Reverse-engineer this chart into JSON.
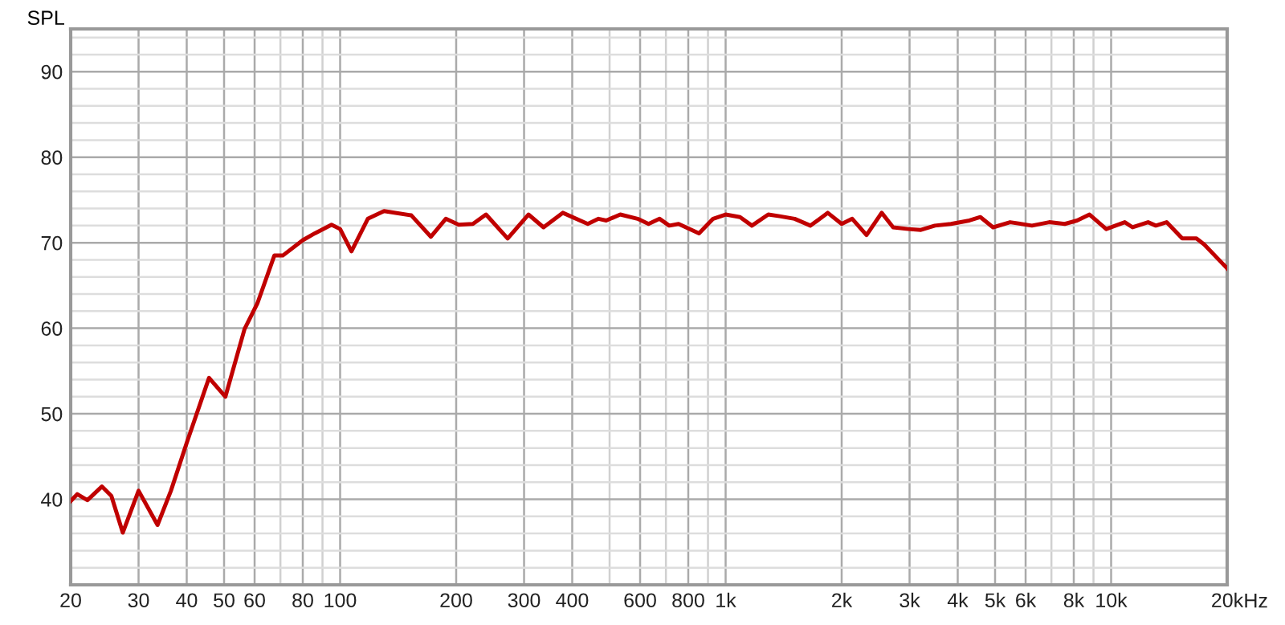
{
  "chart_data": {
    "type": "line",
    "ylabel": "SPL",
    "log": "x",
    "grid": true,
    "marker": "none",
    "line_style": "solid",
    "x": [
      20,
      20.8,
      22.1,
      24.1,
      25.5,
      27.3,
      30,
      33.6,
      36.4,
      40,
      45.7,
      50.4,
      56.5,
      61,
      67.5,
      71,
      80,
      86,
      95,
      100,
      107,
      118,
      130,
      153,
      172,
      188,
      203,
      221,
      239,
      272,
      308,
      337,
      378,
      439,
      468,
      490,
      533,
      591,
      631,
      674,
      714,
      755,
      853,
      928,
      1000,
      1090,
      1170,
      1290,
      1380,
      1510,
      1660,
      1840,
      2000,
      2130,
      2320,
      2540,
      2720,
      2980,
      3210,
      3490,
      3840,
      4290,
      4580,
      4940,
      5470,
      6230,
      6910,
      7580,
      8160,
      8790,
      9710,
      10850,
      11370,
      12470,
      13060,
      13930,
      15290,
      16640,
      17430,
      20000
    ],
    "series": [
      {
        "color": "#c00000",
        "values": [
          39.8,
          40.6,
          39.9,
          41.5,
          40.4,
          36.1,
          41.0,
          37.0,
          41.0,
          46.6,
          54.2,
          52.0,
          59.9,
          62.9,
          68.5,
          68.5,
          70.3,
          71.1,
          72.1,
          71.6,
          69.0,
          72.8,
          73.7,
          73.2,
          70.7,
          72.8,
          72.1,
          72.2,
          73.3,
          70.5,
          73.3,
          71.8,
          73.5,
          72.2,
          72.8,
          72.6,
          73.3,
          72.8,
          72.2,
          72.8,
          72.0,
          72.2,
          71.1,
          72.8,
          73.3,
          73.0,
          72.0,
          73.3,
          73.1,
          72.8,
          72.0,
          73.5,
          72.2,
          72.8,
          70.9,
          73.5,
          71.8,
          71.6,
          71.5,
          72.0,
          72.2,
          72.6,
          73.0,
          71.8,
          72.4,
          72.0,
          72.4,
          72.2,
          72.6,
          73.3,
          71.6,
          72.4,
          71.8,
          72.4,
          72.0,
          72.4,
          70.5,
          70.5,
          69.8,
          67.0
        ]
      }
    ],
    "xlim": [
      20,
      20000
    ],
    "xticks": [
      20,
      30,
      40,
      50,
      60,
      {
        "value": 70,
        "label": null
      },
      80,
      {
        "value": 90,
        "label": null
      },
      100,
      200,
      300,
      400,
      {
        "value": 500,
        "label": null
      },
      600,
      {
        "value": 700,
        "label": null
      },
      800,
      {
        "value": 900,
        "label": null
      },
      {
        "value": 1000,
        "label": "1k"
      },
      {
        "value": 2000,
        "label": "2k"
      },
      {
        "value": 3000,
        "label": "3k"
      },
      {
        "value": 4000,
        "label": "4k"
      },
      {
        "value": 5000,
        "label": "5k"
      },
      {
        "value": 6000,
        "label": "6k"
      },
      {
        "value": 7000,
        "label": null
      },
      {
        "value": 8000,
        "label": "8k"
      },
      {
        "value": 9000,
        "label": null
      },
      {
        "value": 10000,
        "label": "10k"
      },
      {
        "value": 20000,
        "label": "20k"
      }
    ],
    "xlabel": "Hz",
    "ylim": [
      30,
      95
    ],
    "yticks": [
      {
        "value": 32,
        "label": null
      },
      {
        "value": 34,
        "label": null
      },
      {
        "value": 36,
        "label": null
      },
      {
        "value": 38,
        "label": null
      },
      40,
      {
        "value": 42,
        "label": null
      },
      {
        "value": 44,
        "label": null
      },
      {
        "value": 46,
        "label": null
      },
      {
        "value": 48,
        "label": null
      },
      50,
      {
        "value": 52,
        "label": null
      },
      {
        "value": 54,
        "label": null
      },
      {
        "value": 56,
        "label": null
      },
      {
        "value": 58,
        "label": null
      },
      60,
      {
        "value": 62,
        "label": null
      },
      {
        "value": 64,
        "label": null
      },
      {
        "value": 66,
        "label": null
      },
      {
        "value": 68,
        "label": null
      },
      70,
      {
        "value": 72,
        "label": null
      },
      {
        "value": 74,
        "label": null
      },
      {
        "value": 76,
        "label": null
      },
      {
        "value": 78,
        "label": null
      },
      80,
      {
        "value": 82,
        "label": null
      },
      {
        "value": 84,
        "label": null
      },
      {
        "value": 86,
        "label": null
      },
      {
        "value": 88,
        "label": null
      },
      90,
      {
        "value": 92,
        "label": null
      },
      {
        "value": 94,
        "label": null
      }
    ]
  }
}
